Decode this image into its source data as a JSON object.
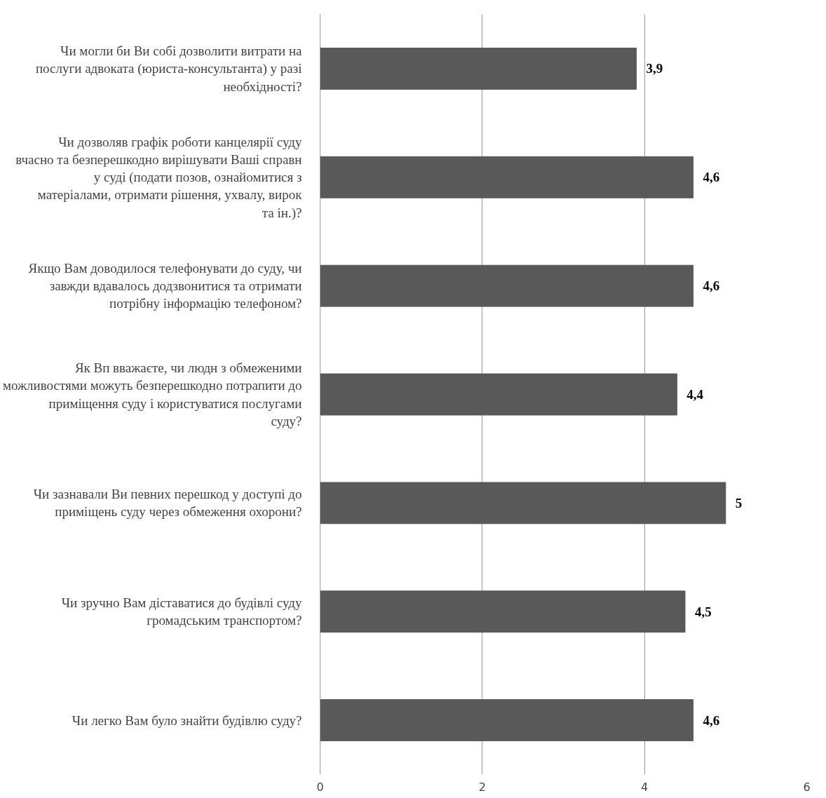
{
  "chart_data": {
    "type": "bar",
    "orientation": "horizontal",
    "categories": [
      "Чи могли би Ви собі дозволити витрати на послуги адвоката (юриста-консультанта) у разі необхідності?",
      "Чи дозволяв графік роботи канцелярії суду вчасно та безперешкодно вирішувати Ваші справн у суді (подати позов, ознайомитися з матеріалами, отримати рішення, ухвалу, вирок та ін.)?",
      "Якщо Вам доводилося телефонувати до суду, чи завжди вдавалось додзвонитися та отримати потрібну інформацію телефоном?",
      "Як Вп вважаєте, чи людн з обмеженими можливостями можуть безперешкодно потрапити до приміщення суду і користуватися послугами суду?",
      "Чи зазнавали Ви певних перешкод у доступі до приміщень суду через обмеження охорони?",
      "Чи зручно Вам діставатися до будівлі суду громадським транспортом?",
      "Чи легко Вам було знайти будівлю суду?"
    ],
    "values": [
      3.9,
      4.6,
      4.6,
      4.4,
      5,
      4.5,
      4.6
    ],
    "value_labels": [
      "3,9",
      "4,6",
      "4,6",
      "4,4",
      "5",
      "4,5",
      "4,6"
    ],
    "color": "#595959",
    "xlim": [
      0,
      6
    ],
    "xticks": [
      0,
      2,
      4,
      6
    ],
    "grid": "x"
  }
}
